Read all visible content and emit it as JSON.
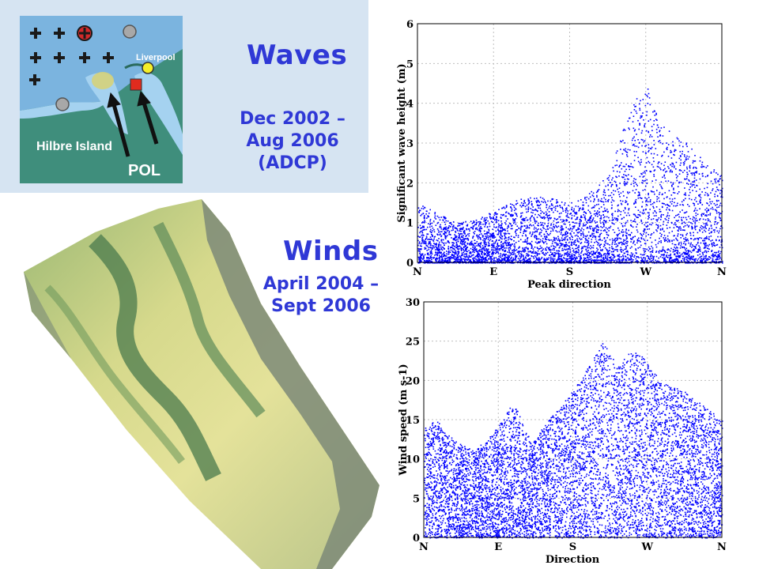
{
  "map": {
    "liverpool_label": "Liverpool",
    "hilbre_label": "Hilbre Island",
    "pol_label": "POL",
    "colors": {
      "land": "#3f8e7c",
      "water": "#80b8e2",
      "estuary": "#9dcaea",
      "marker": "#ffffff"
    }
  },
  "waves": {
    "title": "Waves",
    "dates_line1": "Dec 2002 –",
    "dates_line2": "Aug 2006",
    "dates_line3": "(ADCP)"
  },
  "winds": {
    "title": "Winds",
    "dates_line1": "April 2004 –",
    "dates_line2": "Sept 2006"
  },
  "chart_data": [
    {
      "type": "scatter",
      "xlabel": "Peak direction",
      "ylabel": "Significant wave height (m)",
      "x_ticks": [
        "N",
        "E",
        "S",
        "W",
        "N"
      ],
      "x_range": [
        0,
        360
      ],
      "ylim": [
        0,
        6
      ],
      "y_ticks": [
        0,
        1,
        2,
        3,
        4,
        5,
        6
      ],
      "grid": true,
      "color": "#0000ff",
      "envelope": [
        {
          "x": 0,
          "y": 1.5
        },
        {
          "x": 20,
          "y": 1.3
        },
        {
          "x": 45,
          "y": 1.0
        },
        {
          "x": 70,
          "y": 1.1
        },
        {
          "x": 90,
          "y": 1.3
        },
        {
          "x": 120,
          "y": 1.6
        },
        {
          "x": 150,
          "y": 1.7
        },
        {
          "x": 180,
          "y": 1.5
        },
        {
          "x": 200,
          "y": 1.7
        },
        {
          "x": 225,
          "y": 2.2
        },
        {
          "x": 245,
          "y": 3.5
        },
        {
          "x": 260,
          "y": 4.2
        },
        {
          "x": 270,
          "y": 4.5
        },
        {
          "x": 285,
          "y": 3.6
        },
        {
          "x": 300,
          "y": 3.3
        },
        {
          "x": 320,
          "y": 3.0
        },
        {
          "x": 340,
          "y": 2.5
        },
        {
          "x": 360,
          "y": 2.2
        }
      ]
    },
    {
      "type": "scatter",
      "xlabel": "Direction",
      "ylabel": "Wind speed (m s-1)",
      "x_ticks": [
        "N",
        "E",
        "S",
        "W",
        "N"
      ],
      "x_range": [
        0,
        360
      ],
      "ylim": [
        0,
        30
      ],
      "y_ticks": [
        0,
        5,
        10,
        15,
        20,
        25,
        30
      ],
      "grid": true,
      "color": "#0000ff",
      "envelope": [
        {
          "x": 0,
          "y": 14
        },
        {
          "x": 15,
          "y": 15
        },
        {
          "x": 30,
          "y": 13
        },
        {
          "x": 45,
          "y": 12
        },
        {
          "x": 60,
          "y": 11
        },
        {
          "x": 80,
          "y": 13
        },
        {
          "x": 95,
          "y": 15
        },
        {
          "x": 105,
          "y": 17
        },
        {
          "x": 115,
          "y": 16
        },
        {
          "x": 130,
          "y": 12
        },
        {
          "x": 150,
          "y": 15
        },
        {
          "x": 175,
          "y": 18
        },
        {
          "x": 200,
          "y": 22
        },
        {
          "x": 215,
          "y": 25
        },
        {
          "x": 235,
          "y": 22
        },
        {
          "x": 250,
          "y": 24
        },
        {
          "x": 265,
          "y": 23
        },
        {
          "x": 285,
          "y": 20
        },
        {
          "x": 310,
          "y": 19
        },
        {
          "x": 335,
          "y": 17
        },
        {
          "x": 360,
          "y": 15
        }
      ]
    }
  ]
}
